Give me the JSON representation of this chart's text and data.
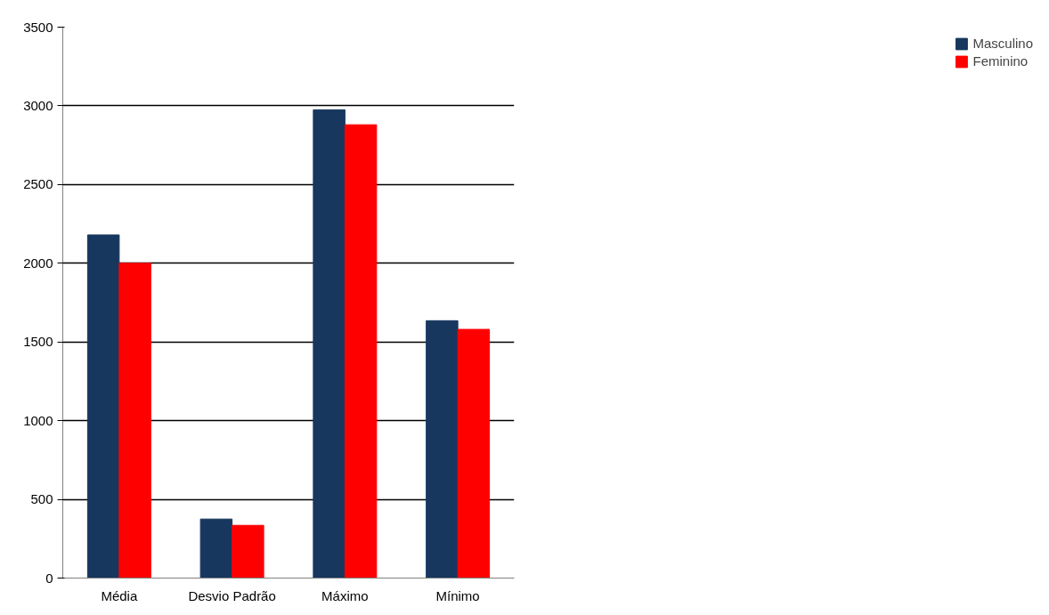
{
  "chart_data": {
    "type": "bar",
    "categories": [
      "Média",
      "Desvio Padrão",
      "Máximo",
      "Mínimo"
    ],
    "series": [
      {
        "name": "Masculino",
        "color": "#17375e",
        "values": [
          2180,
          375,
          2975,
          1635
        ]
      },
      {
        "name": "Feminino",
        "color": "#ff0000",
        "values": [
          2000,
          335,
          2880,
          1580
        ]
      }
    ],
    "ylim": [
      0,
      3500
    ],
    "yticks": [
      0,
      500,
      1000,
      1500,
      2000,
      2500,
      3000,
      3500
    ],
    "grid": "y",
    "legend": "right"
  }
}
